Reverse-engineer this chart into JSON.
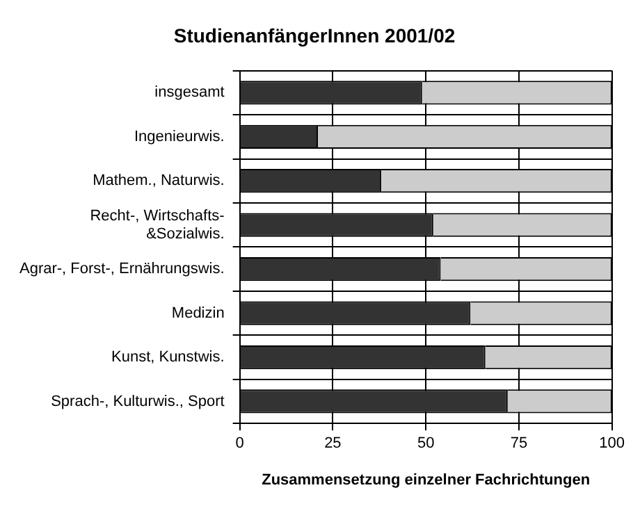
{
  "chart_data": {
    "type": "bar",
    "orientation": "horizontal",
    "stacked": true,
    "title": "StudienanfängerInnen 2001/02",
    "xlabel": "Zusammensetzung einzelner Fachrichtungen",
    "categories": [
      "insgesamt",
      "Ingenieurwis.",
      "Mathem., Naturwis.",
      "Recht-, Wirtschafts-\n&Sozialwis.",
      "Agrar-, Forst-, Ernährungswis.",
      "Medizin",
      "Kunst, Kunstwis.",
      "Sprach-, Kulturwis., Sport"
    ],
    "series": [
      {
        "color": "#333333",
        "values": [
          49,
          21,
          38,
          52,
          54,
          62,
          66,
          72
        ]
      },
      {
        "color": "#cccccc",
        "values": [
          51,
          79,
          62,
          48,
          46,
          38,
          34,
          28
        ]
      }
    ],
    "xlim": [
      0,
      100
    ],
    "xticks": [
      0,
      25,
      50,
      75,
      100
    ],
    "grid": true,
    "legend": false
  }
}
